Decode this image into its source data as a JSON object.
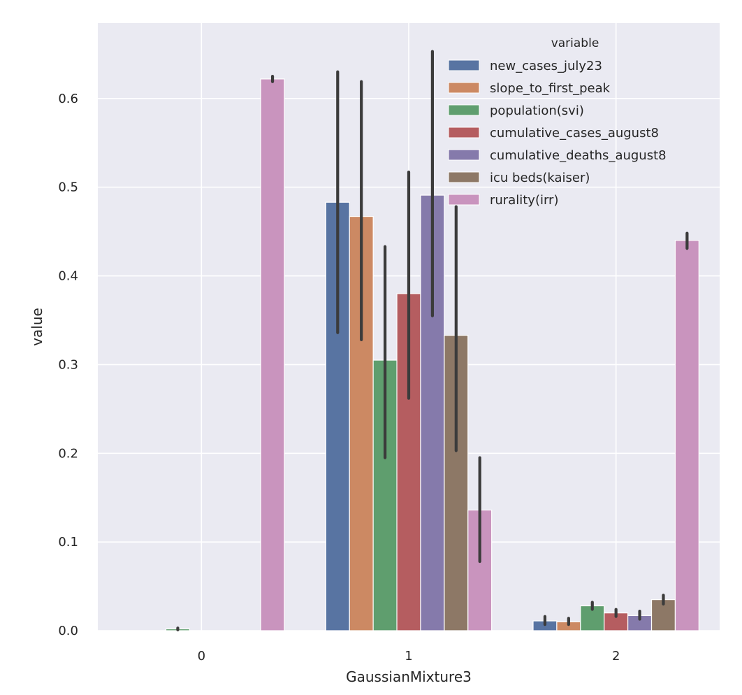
{
  "chart_data": {
    "type": "bar",
    "xlabel": "GaussianMixture3",
    "ylabel": "value",
    "categories": [
      "0",
      "1",
      "2"
    ],
    "ylim": [
      0,
      0.685
    ],
    "yticks": [
      0.0,
      0.1,
      0.2,
      0.3,
      0.4,
      0.5,
      0.6
    ],
    "ytick_labels": [
      "0.0",
      "0.1",
      "0.2",
      "0.3",
      "0.4",
      "0.5",
      "0.6"
    ],
    "grid": true,
    "legend": {
      "title": "variable",
      "placement": "top-right"
    },
    "series": [
      {
        "name": "new_cases_july23",
        "color": "#5874a2",
        "values": [
          0.0,
          0.483,
          0.011
        ],
        "err": [
          [
            0.0,
            0.0
          ],
          [
            0.336,
            0.63
          ],
          [
            0.007,
            0.016
          ]
        ]
      },
      {
        "name": "slope_to_first_peak",
        "color": "#cc8963",
        "values": [
          0.0,
          0.467,
          0.01
        ],
        "err": [
          [
            0.0,
            0.0
          ],
          [
            0.328,
            0.619
          ],
          [
            0.007,
            0.014
          ]
        ]
      },
      {
        "name": "population(svi)",
        "color": "#5f9e6e",
        "values": [
          0.002,
          0.305,
          0.028
        ],
        "err": [
          [
            0.001,
            0.003
          ],
          [
            0.195,
            0.433
          ],
          [
            0.024,
            0.032
          ]
        ]
      },
      {
        "name": "cumulative_cases_august8",
        "color": "#b55d60",
        "values": [
          0.0,
          0.38,
          0.02
        ],
        "err": [
          [
            0.0,
            0.0
          ],
          [
            0.262,
            0.517
          ],
          [
            0.016,
            0.024
          ]
        ]
      },
      {
        "name": "cumulative_deaths_august8",
        "color": "#857aab",
        "values": [
          0.0,
          0.491,
          0.017
        ],
        "err": [
          [
            0.0,
            0.0
          ],
          [
            0.355,
            0.653
          ],
          [
            0.013,
            0.022
          ]
        ]
      },
      {
        "name": "icu beds(kaiser)",
        "color": "#8d7866",
        "values": [
          0.0,
          0.333,
          0.035
        ],
        "err": [
          [
            0.0,
            0.0
          ],
          [
            0.203,
            0.478
          ],
          [
            0.03,
            0.04
          ]
        ]
      },
      {
        "name": "rurality(irr)",
        "color": "#c994be",
        "values": [
          0.622,
          0.136,
          0.44
        ],
        "err": [
          [
            0.619,
            0.625
          ],
          [
            0.078,
            0.195
          ],
          [
            0.431,
            0.448
          ]
        ]
      }
    ]
  }
}
